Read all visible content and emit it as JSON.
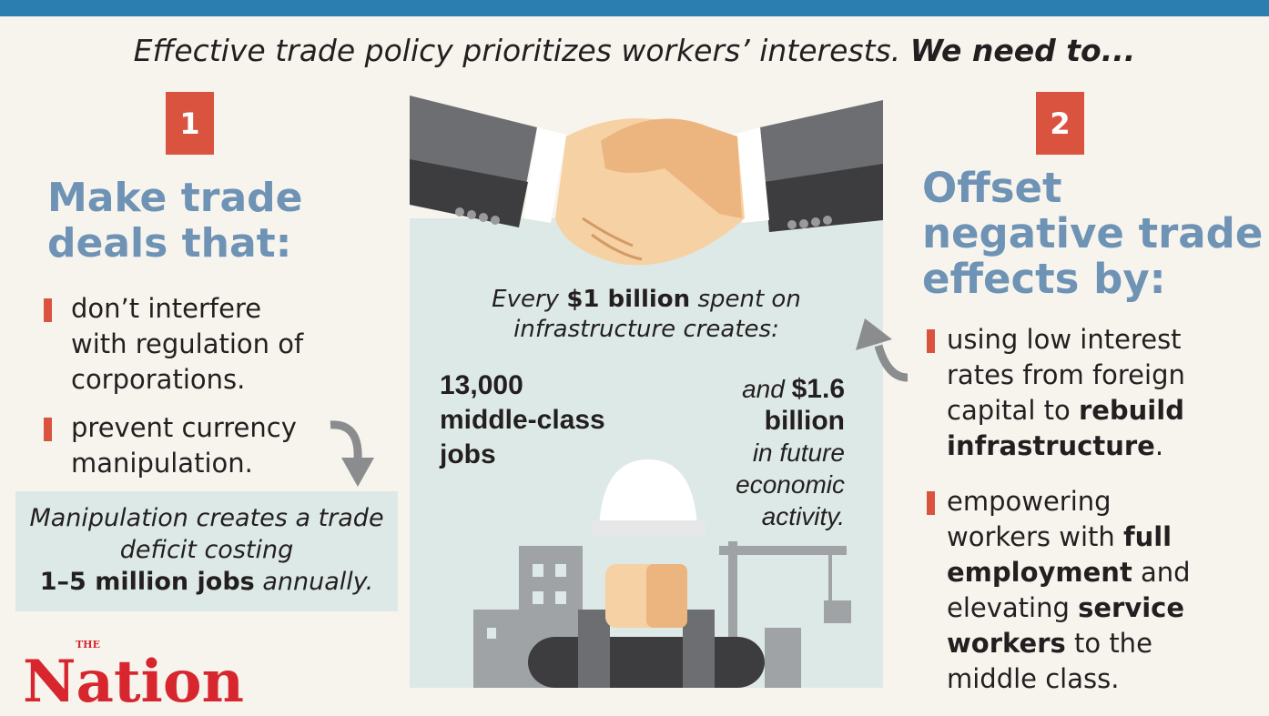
{
  "headline": {
    "italic": "Effective trade policy prioritizes workers’ interests.",
    "bold": "We need to..."
  },
  "left": {
    "number": "1",
    "title_lines": [
      "Make trade",
      "deals that:"
    ],
    "bullets": [
      {
        "lines": [
          "don’t interfere",
          "with regulation of",
          "corporations."
        ]
      },
      {
        "lines": [
          "prevent currency",
          "manipulation."
        ]
      }
    ],
    "note": {
      "line1": "Manipulation creates a trade",
      "line2": "deficit costing",
      "bold": "1–5 million jobs",
      "tail": "annually."
    }
  },
  "center": {
    "intro": {
      "pre": "Every",
      "bold": "$1 billion",
      "post": "spent on",
      "line2": "infrastructure creates:"
    },
    "jobs": [
      "13,000",
      "middle-class",
      "jobs"
    ],
    "activity": {
      "pre": "and",
      "bold1": "$1.6",
      "bold2": "billion",
      "lines": [
        "in future",
        "economic",
        "activity."
      ]
    }
  },
  "right": {
    "number": "2",
    "title_lines": [
      "Offset",
      "negative trade",
      "effects by:"
    ],
    "bullet1": {
      "l1": "using low interest",
      "l2": "rates from foreign",
      "l3a": "capital to",
      "l3b": "rebuild",
      "l4b": "infrastructure",
      "l4a": "."
    },
    "bullet2": {
      "l1": "empowering",
      "l2a": "workers with",
      "l2b": "full",
      "l3b": "employment",
      "l3a": "and",
      "l4a": "elevating",
      "l4b": "service",
      "l5b": "workers",
      "l5a": "to the",
      "l6": "middle class."
    }
  },
  "logo": {
    "the": "THE",
    "name": "Nation"
  },
  "colors": {
    "topbar": "#2a7fb0",
    "accent": "#d9533f",
    "title": "#6f93b5",
    "panel": "#dde9e6",
    "logo": "#d7262e"
  }
}
